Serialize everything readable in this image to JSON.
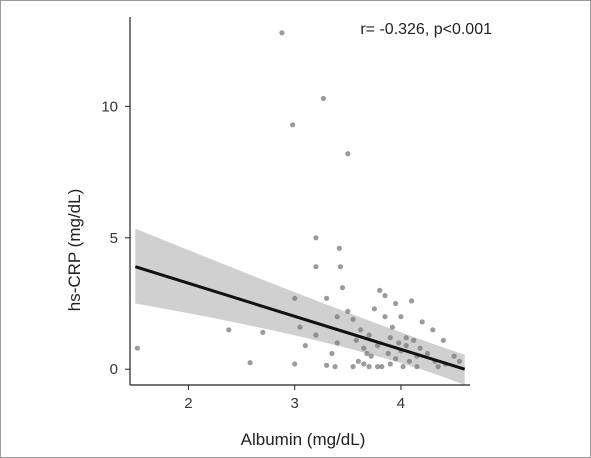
{
  "chart_data": {
    "type": "scatter",
    "title": "",
    "xlabel": "Albumin (mg/dL)",
    "ylabel": "hs-CRP (mg/dL)",
    "annotation": "r= -0.326, p<0.001",
    "xlim": [
      1.45,
      4.65
    ],
    "ylim": [
      -0.6,
      13.4
    ],
    "x_ticks": [
      2,
      3,
      4
    ],
    "y_ticks": [
      0,
      5,
      10
    ],
    "grid": false,
    "point_color": "#7a7a7a",
    "regression": {
      "x": [
        1.5,
        4.6
      ],
      "y": [
        3.9,
        0.0
      ],
      "ci_lower": [
        2.5,
        -0.6
      ],
      "ci_upper": [
        5.35,
        0.55
      ],
      "line_color": "#111111",
      "band_color": "#c8c8c8"
    },
    "points": [
      [
        1.52,
        0.8
      ],
      [
        2.38,
        1.5
      ],
      [
        2.58,
        0.25
      ],
      [
        2.7,
        1.4
      ],
      [
        2.88,
        12.8
      ],
      [
        2.98,
        9.3
      ],
      [
        3.0,
        2.7
      ],
      [
        3.0,
        0.2
      ],
      [
        3.05,
        1.6
      ],
      [
        3.1,
        0.9
      ],
      [
        3.2,
        5.0
      ],
      [
        3.2,
        3.9
      ],
      [
        3.2,
        1.3
      ],
      [
        3.27,
        10.3
      ],
      [
        3.3,
        2.7
      ],
      [
        3.3,
        0.15
      ],
      [
        3.38,
        0.1
      ],
      [
        3.4,
        2.0
      ],
      [
        3.4,
        1.0
      ],
      [
        3.42,
        4.6
      ],
      [
        3.43,
        3.9
      ],
      [
        3.45,
        3.1
      ],
      [
        3.5,
        8.2
      ],
      [
        3.5,
        2.2
      ],
      [
        3.55,
        1.9
      ],
      [
        3.55,
        0.1
      ],
      [
        3.6,
        0.3
      ],
      [
        3.62,
        1.5
      ],
      [
        3.65,
        0.8
      ],
      [
        3.65,
        0.2
      ],
      [
        3.7,
        1.3
      ],
      [
        3.7,
        0.1
      ],
      [
        3.72,
        0.5
      ],
      [
        3.75,
        2.3
      ],
      [
        3.78,
        0.9
      ],
      [
        3.8,
        3.0
      ],
      [
        3.82,
        0.1
      ],
      [
        3.85,
        2.0
      ],
      [
        3.85,
        2.8
      ],
      [
        3.88,
        0.6
      ],
      [
        3.9,
        1.2
      ],
      [
        3.9,
        0.2
      ],
      [
        3.95,
        0.4
      ],
      [
        3.95,
        2.5
      ],
      [
        4.0,
        0.7
      ],
      [
        4.0,
        2.0
      ],
      [
        4.02,
        0.1
      ],
      [
        4.05,
        0.9
      ],
      [
        4.05,
        1.2
      ],
      [
        4.08,
        0.3
      ],
      [
        4.1,
        2.6
      ],
      [
        4.12,
        1.1
      ],
      [
        4.15,
        0.5
      ],
      [
        4.15,
        0.1
      ],
      [
        4.2,
        1.8
      ],
      [
        4.25,
        0.6
      ],
      [
        4.3,
        1.5
      ],
      [
        4.32,
        0.3
      ],
      [
        4.35,
        0.1
      ],
      [
        4.4,
        1.1
      ],
      [
        4.42,
        0.2
      ],
      [
        4.5,
        0.5
      ],
      [
        4.55,
        0.3
      ],
      [
        3.68,
        0.6
      ],
      [
        3.58,
        1.1
      ],
      [
        3.92,
        1.6
      ],
      [
        4.18,
        0.8
      ],
      [
        3.35,
        0.6
      ],
      [
        3.78,
        0.1
      ],
      [
        3.98,
        1.0
      ]
    ]
  }
}
